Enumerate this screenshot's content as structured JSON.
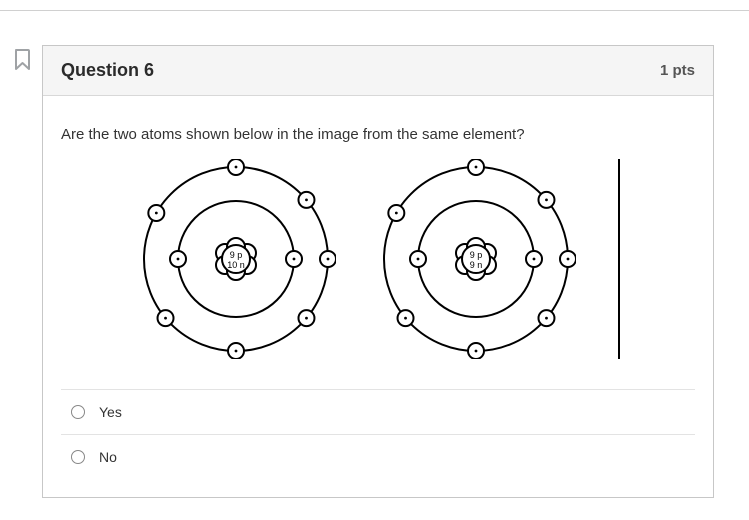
{
  "header": {
    "title": "Question 6",
    "points": "1 pts"
  },
  "prompt": "Are the two atoms shown below in the image from the same element?",
  "atoms": {
    "left": {
      "p": "9 p",
      "n": "10 n"
    },
    "right": {
      "p": "9 p",
      "n": "9 n"
    },
    "style": {
      "stroke": "#000000",
      "electron_fill": "#ffffff",
      "electron_dot_radius": 1.4,
      "outer_r": 92,
      "inner_r": 58,
      "electron_r": 8,
      "nucleon_r": 9
    }
  },
  "options": {
    "a": "Yes",
    "b": "No"
  }
}
